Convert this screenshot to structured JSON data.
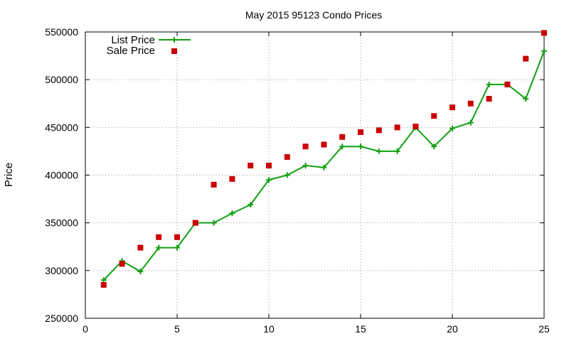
{
  "chart_data": {
    "type": "line",
    "title": "May 2015 95123 Condo Prices",
    "xlabel": "",
    "ylabel": "Price",
    "xlim": [
      0,
      25
    ],
    "ylim": [
      250000,
      550000
    ],
    "xticks": [
      0,
      5,
      10,
      15,
      20,
      25
    ],
    "yticks": [
      250000,
      300000,
      350000,
      400000,
      450000,
      500000,
      550000
    ],
    "grid": true,
    "legend_position": "top-left",
    "series": [
      {
        "name": "List Price",
        "style": "line+cross",
        "color": "#12a012",
        "x": [
          1,
          2,
          3,
          4,
          5,
          6,
          7,
          8,
          9,
          10,
          11,
          12,
          13,
          14,
          15,
          16,
          17,
          18,
          19,
          20,
          21,
          22,
          23,
          24,
          25
        ],
        "values": [
          290000,
          310000,
          299000,
          324000,
          324000,
          350000,
          350000,
          360000,
          369000,
          395000,
          400000,
          410000,
          408000,
          430000,
          430000,
          425000,
          425000,
          450000,
          430000,
          449000,
          455000,
          495000,
          495000,
          480000,
          530000
        ]
      },
      {
        "name": "Sale Price",
        "style": "square",
        "color": "#cc0000",
        "x": [
          1,
          2,
          3,
          4,
          5,
          6,
          7,
          8,
          9,
          10,
          11,
          12,
          13,
          14,
          15,
          16,
          17,
          18,
          19,
          20,
          21,
          22,
          23,
          24,
          25
        ],
        "values": [
          285000,
          307000,
          324000,
          335000,
          335000,
          350000,
          390000,
          396000,
          410000,
          410000,
          419000,
          430000,
          432000,
          440000,
          445000,
          447000,
          450000,
          451000,
          462000,
          471000,
          475000,
          480000,
          495000,
          522000,
          549000
        ]
      }
    ]
  }
}
